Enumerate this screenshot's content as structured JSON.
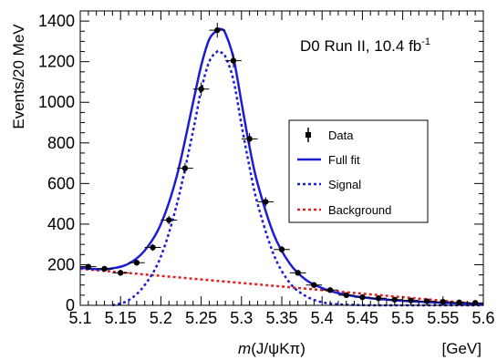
{
  "chart_data": {
    "type": "scatter",
    "xlim": [
      5.1,
      5.6
    ],
    "ylim": [
      0,
      1450
    ],
    "x_ticks": [
      "5.1",
      "5.15",
      "5.2",
      "5.25",
      "5.3",
      "5.35",
      "5.4",
      "5.45",
      "5.5",
      "5.55",
      "5.6"
    ],
    "y_ticks": [
      "0",
      "200",
      "400",
      "600",
      "800",
      "1000",
      "1200",
      "1400"
    ],
    "ylabel": "Events/20 MeV",
    "xlabel_mass": "m",
    "xlabel_rest": "(J/ψKπ)",
    "xlabel_unit": "[GeV]",
    "annotation_main": "D0 Run II, 10.4 fb",
    "annotation_sup": "-1",
    "legend": {
      "position": "right",
      "entries": {
        "data": "Data",
        "full": "Full fit",
        "signal": "Signal",
        "background": "Background"
      }
    },
    "series": [
      {
        "name": "Data",
        "bin_half_width": 0.01,
        "x": [
          5.11,
          5.13,
          5.15,
          5.17,
          5.19,
          5.21,
          5.23,
          5.25,
          5.27,
          5.29,
          5.31,
          5.33,
          5.35,
          5.37,
          5.39,
          5.41,
          5.43,
          5.45,
          5.47,
          5.49,
          5.51,
          5.53,
          5.55,
          5.57,
          5.59
        ],
        "y": [
          190,
          180,
          160,
          210,
          285,
          420,
          675,
          1065,
          1355,
          1205,
          820,
          510,
          275,
          160,
          100,
          75,
          50,
          40,
          35,
          28,
          24,
          20,
          17,
          14,
          12
        ]
      },
      {
        "name": "Full fit",
        "x": [
          5.1,
          5.12,
          5.14,
          5.16,
          5.18,
          5.2,
          5.22,
          5.24,
          5.25,
          5.26,
          5.27,
          5.275,
          5.28,
          5.29,
          5.3,
          5.31,
          5.32,
          5.34,
          5.36,
          5.38,
          5.4,
          5.42,
          5.44,
          5.46,
          5.48,
          5.5,
          5.52,
          5.54,
          5.56,
          5.58,
          5.6
        ],
        "y": [
          185,
          178,
          182,
          205,
          270,
          400,
          640,
          1000,
          1180,
          1310,
          1355,
          1360,
          1340,
          1220,
          1000,
          780,
          600,
          350,
          205,
          125,
          85,
          60,
          45,
          35,
          28,
          22,
          18,
          14,
          11,
          8,
          5
        ]
      },
      {
        "name": "Signal",
        "x": [
          5.14,
          5.16,
          5.18,
          5.2,
          5.22,
          5.24,
          5.25,
          5.26,
          5.27,
          5.275,
          5.28,
          5.29,
          5.3,
          5.31,
          5.32,
          5.34,
          5.36,
          5.38,
          5.4,
          5.42,
          5.44,
          5.46,
          5.5,
          5.6
        ],
        "y": [
          0,
          25,
          100,
          240,
          500,
          860,
          1060,
          1200,
          1250,
          1245,
          1225,
          1110,
          890,
          680,
          500,
          250,
          110,
          45,
          15,
          5,
          2,
          0,
          0,
          0
        ]
      },
      {
        "name": "Background",
        "x": [
          5.1,
          5.6
        ],
        "y": [
          180,
          5
        ]
      }
    ]
  }
}
